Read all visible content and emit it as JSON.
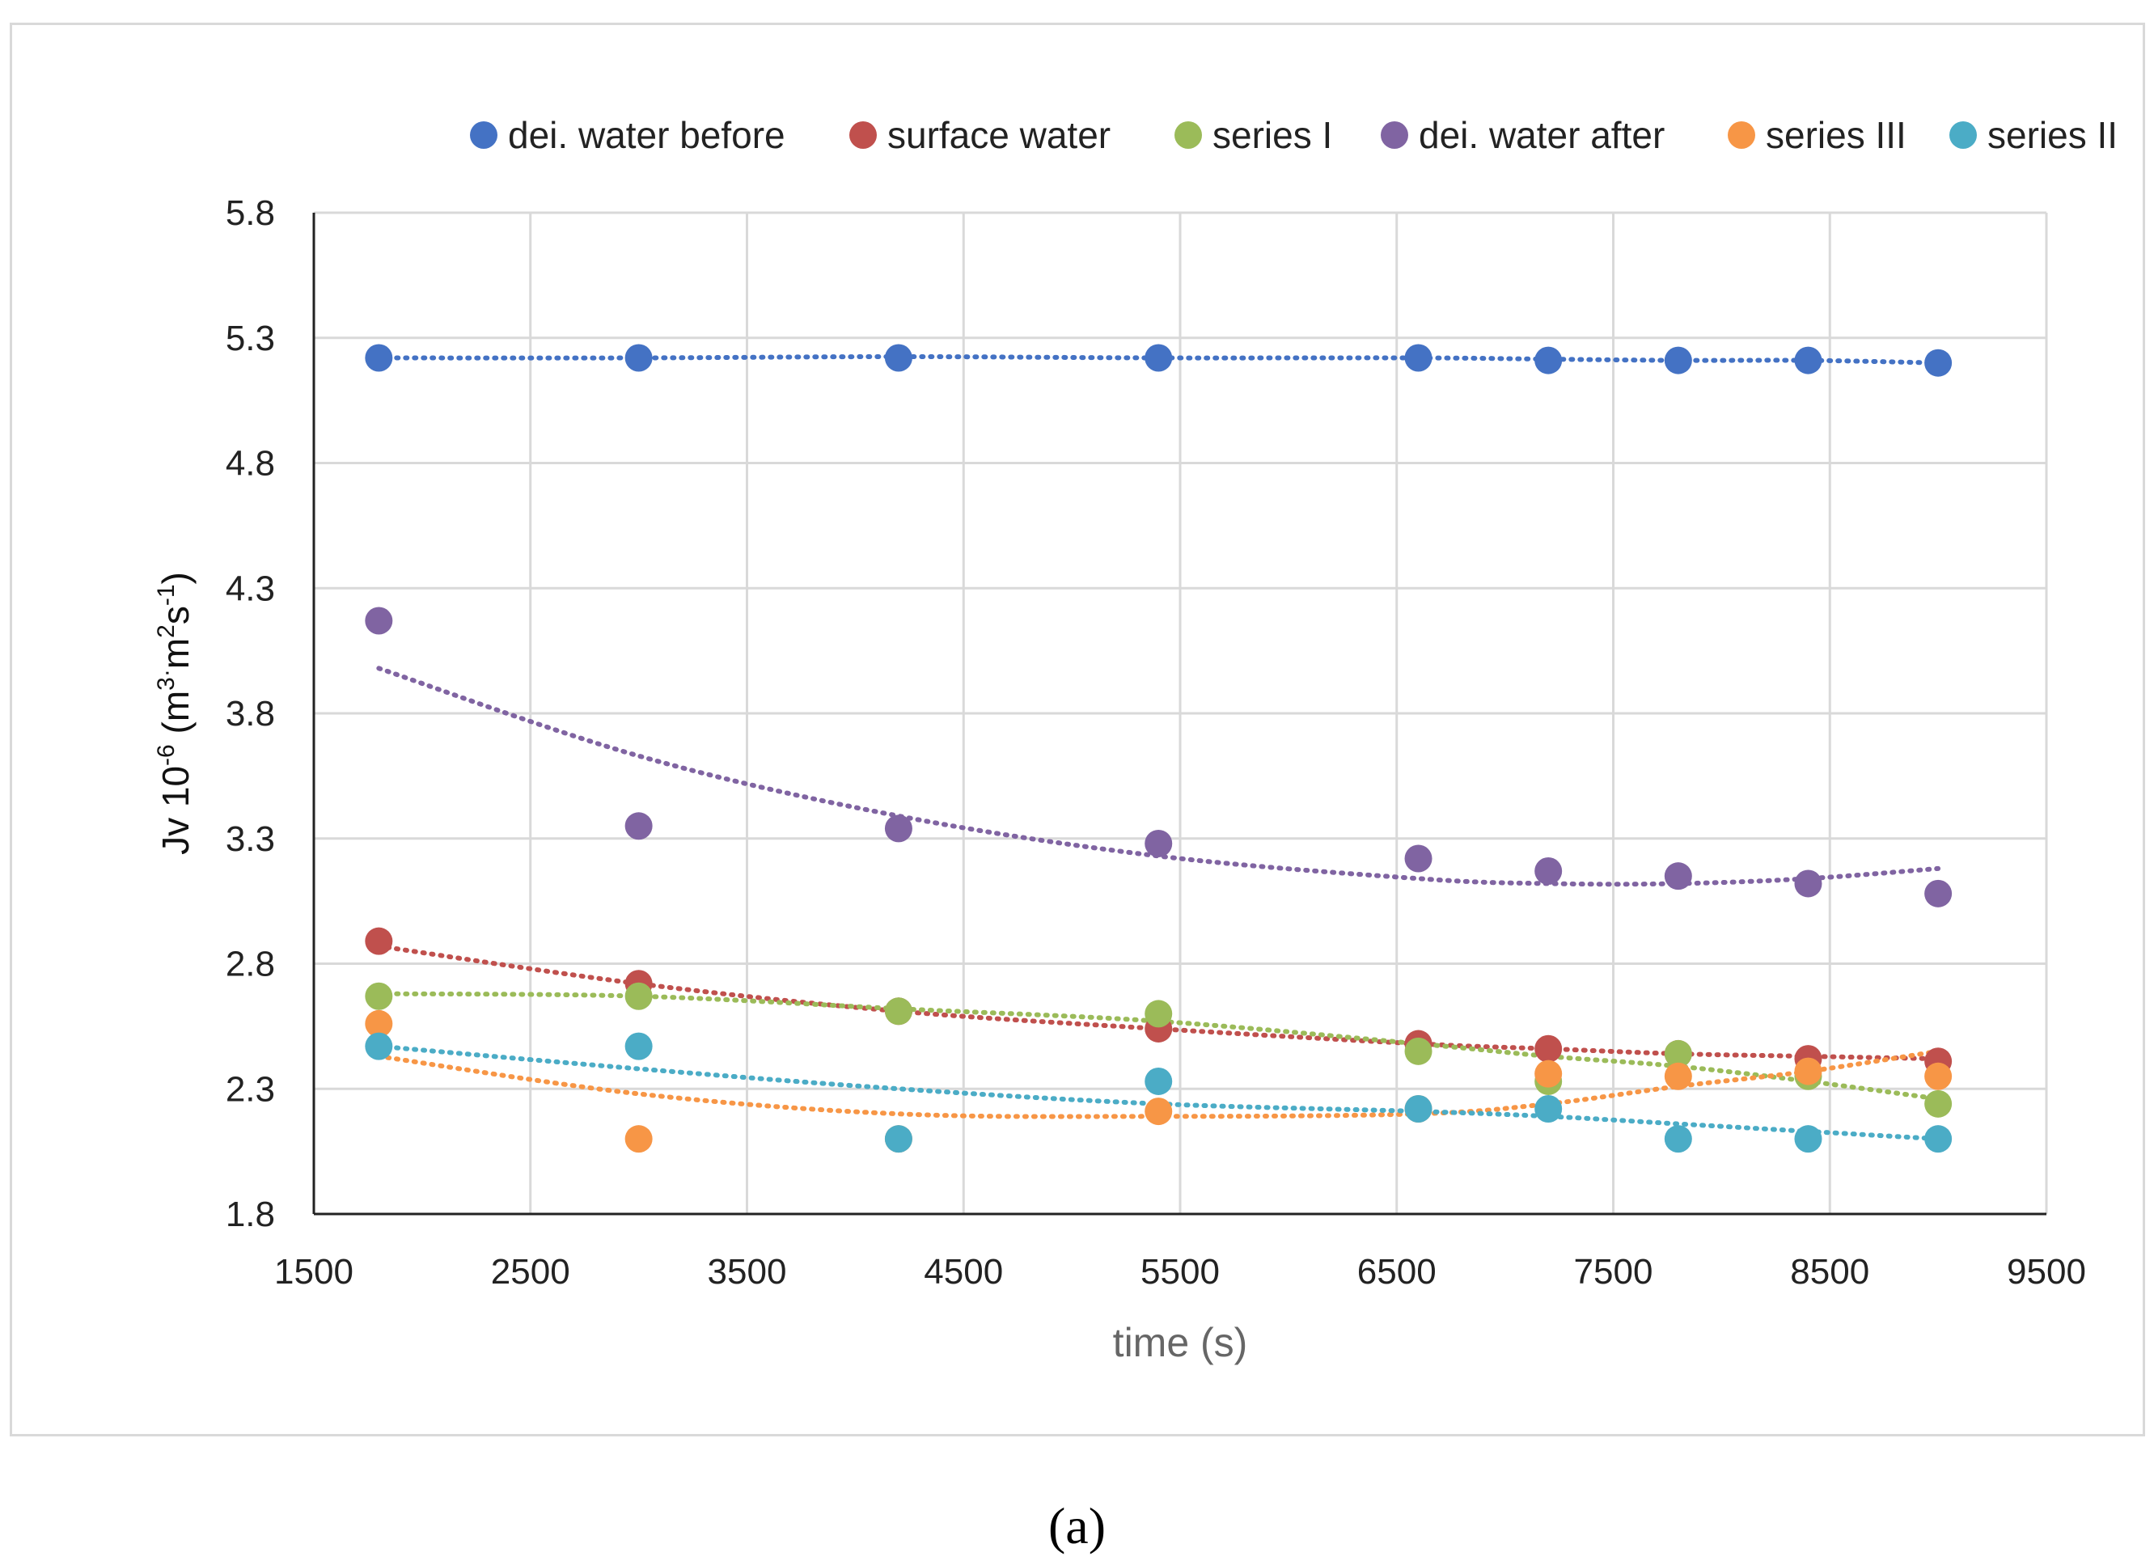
{
  "caption": "(a)",
  "chart_data": {
    "type": "scatter",
    "title": "",
    "xlabel": "time (s)",
    "ylabel": {
      "text_a": "Jv 10",
      "sup_a": "-6",
      "text_b": " (m",
      "sup_b": "3",
      "sup_dot": "·",
      "text_c": "m",
      "sup_c": "2",
      "text_d": "s",
      "sup_d": "-1",
      "text_e": ")"
    },
    "xlim": [
      1500,
      9500
    ],
    "ylim": [
      1.8,
      5.8
    ],
    "xticks": [
      1500,
      2500,
      3500,
      4500,
      5500,
      6500,
      7500,
      8500,
      9500
    ],
    "yticks": [
      1.8,
      2.3,
      2.8,
      3.3,
      3.8,
      4.3,
      4.8,
      5.3,
      5.8
    ],
    "ytick_labels": [
      "1.8",
      "2.3",
      "2.8",
      "3.3",
      "3.8",
      "4.3",
      "4.8",
      "5.3",
      "5.8"
    ],
    "grid": true,
    "legend_position": "top",
    "trendline_style": "dotted",
    "x": [
      1800,
      3000,
      4200,
      5400,
      6600,
      7200,
      7800,
      8400,
      9000
    ],
    "series": [
      {
        "name": "dei. water before",
        "color": "#4472C4",
        "values": [
          5.22,
          5.22,
          5.22,
          5.22,
          5.22,
          5.21,
          5.21,
          5.21,
          5.2
        ],
        "trend": [
          5.22,
          5.22,
          5.225,
          5.22,
          5.22,
          5.215,
          5.21,
          5.21,
          5.2
        ]
      },
      {
        "name": "surface water",
        "color": "#C0504D",
        "values": [
          2.89,
          2.72,
          2.61,
          2.54,
          2.48,
          2.46,
          2.44,
          2.42,
          2.41
        ],
        "trend": [
          2.87,
          2.72,
          2.61,
          2.54,
          2.48,
          2.46,
          2.44,
          2.43,
          2.42
        ]
      },
      {
        "name": "series I",
        "color": "#9BBB59",
        "values": [
          2.67,
          2.67,
          2.61,
          2.6,
          2.45,
          2.33,
          2.44,
          2.35,
          2.24
        ],
        "trend": [
          2.68,
          2.67,
          2.62,
          2.57,
          2.48,
          2.43,
          2.39,
          2.33,
          2.26
        ]
      },
      {
        "name": "dei. water after",
        "color": "#8064A2",
        "values": [
          4.17,
          3.35,
          3.34,
          3.28,
          3.22,
          3.17,
          3.15,
          3.12,
          3.08
        ],
        "trend": [
          3.98,
          3.63,
          3.39,
          3.23,
          3.14,
          3.12,
          3.12,
          3.14,
          3.18
        ]
      },
      {
        "name": "series III",
        "color": "#F79646",
        "values": [
          2.56,
          2.1,
          2.1,
          2.21,
          2.22,
          2.36,
          2.35,
          2.37,
          2.35
        ],
        "trend": [
          2.43,
          2.28,
          2.2,
          2.19,
          2.2,
          2.24,
          2.31,
          2.37,
          2.45
        ]
      },
      {
        "name": "series II",
        "color": "#4BACC6",
        "values": [
          2.47,
          2.47,
          2.1,
          2.33,
          2.22,
          2.22,
          2.1,
          2.1,
          2.1
        ],
        "trend": [
          2.47,
          2.38,
          2.3,
          2.24,
          2.21,
          2.19,
          2.16,
          2.13,
          2.1
        ]
      }
    ]
  }
}
